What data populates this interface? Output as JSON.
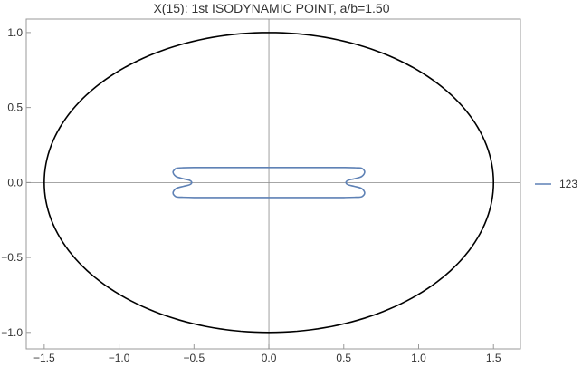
{
  "title": "X(15): 1st ISODYNAMIC POINT, a/b=1.50",
  "colors": {
    "ellipse": "#000000",
    "locus": "#5e81b5",
    "axis": "#888888",
    "frame": "#999999"
  },
  "chart_data": {
    "type": "line",
    "title": "X(15): 1st ISODYNAMIC POINT, a/b=1.50",
    "xlabel": "",
    "ylabel": "",
    "xlim": [
      -1.62,
      1.68
    ],
    "ylim": [
      -1.11,
      1.09
    ],
    "xticks": [
      "−1.5",
      "−1.0",
      "−0.5",
      "0.0",
      "0.5",
      "1.0",
      "1.5"
    ],
    "xtick_values": [
      -1.5,
      -1.0,
      -0.5,
      0.0,
      0.5,
      1.0,
      1.5
    ],
    "yticks": [
      "−1.0",
      "−0.5",
      "0.0",
      "0.5",
      "1.0"
    ],
    "ytick_values": [
      -1.0,
      -0.5,
      0.0,
      0.5,
      1.0
    ],
    "grid": false,
    "legend_placement": "right",
    "series": [
      {
        "kind": "ellipse",
        "a": 1.5,
        "b": 1.0
      },
      {
        "kind": "locus",
        "name": "123",
        "x": [
          -0.62,
          -0.58,
          -0.5,
          -0.3,
          0.0,
          0.3,
          0.5,
          0.58,
          0.62,
          0.64,
          0.62,
          0.57,
          0.53,
          0.515,
          0.53,
          0.57,
          0.62,
          0.64,
          0.62,
          0.58,
          0.5,
          0.3,
          0.0,
          -0.3,
          -0.5,
          -0.58,
          -0.62,
          -0.64,
          -0.62,
          -0.57,
          -0.53,
          -0.515,
          -0.53,
          -0.57,
          -0.62,
          -0.64,
          -0.62
        ],
        "y": [
          0.095,
          0.098,
          0.1,
          0.1,
          0.1,
          0.1,
          0.1,
          0.098,
          0.095,
          0.07,
          0.04,
          0.025,
          0.015,
          0.0,
          -0.015,
          -0.025,
          -0.04,
          -0.07,
          -0.095,
          -0.098,
          -0.1,
          -0.1,
          -0.1,
          -0.1,
          -0.1,
          -0.098,
          -0.095,
          -0.07,
          -0.04,
          -0.025,
          -0.015,
          0.0,
          0.015,
          0.025,
          0.04,
          0.07,
          0.095
        ]
      }
    ]
  }
}
